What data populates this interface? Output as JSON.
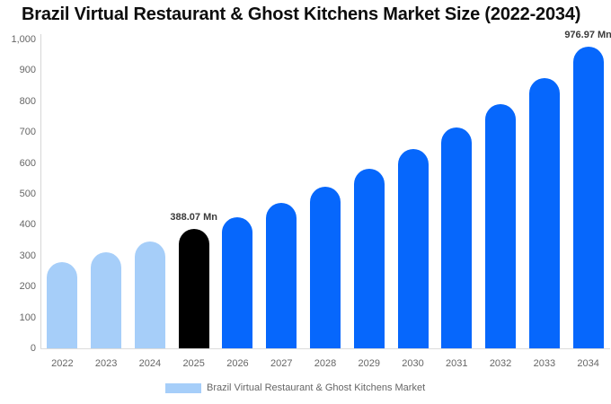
{
  "title": "Brazil Virtual Restaurant & Ghost Kitchens Market Size (2022-2034)",
  "chart_data": {
    "type": "bar",
    "title": "Brazil Virtual Restaurant & Ghost Kitchens Market Size (2022-2034)",
    "unit": "Mn",
    "categories": [
      "2022",
      "2023",
      "2024",
      "2025",
      "2026",
      "2027",
      "2028",
      "2029",
      "2030",
      "2031",
      "2032",
      "2033",
      "2034"
    ],
    "series": [
      {
        "name": "Brazil Virtual Restaurant & Ghost Kitchens Market",
        "values": [
          279,
          311,
          345,
          388.07,
          425,
          470,
          522,
          580,
          645,
          714,
          791,
          875,
          976.97
        ]
      }
    ],
    "bar_colors": [
      "#A6CEF9",
      "#A6CEF9",
      "#A6CEF9",
      "#000000",
      "#0667FC",
      "#0667FC",
      "#0667FC",
      "#0667FC",
      "#0667FC",
      "#0667FC",
      "#0667FC",
      "#0667FC",
      "#0667FC"
    ],
    "value_labels": [
      {
        "category": "2025",
        "index": 3,
        "text": "388.07 Mn"
      },
      {
        "category": "2034",
        "index": 12,
        "text": "976.97 Mn"
      }
    ],
    "xlabel": "",
    "ylabel": "",
    "ylim": [
      0,
      1000
    ],
    "yticks": [
      {
        "value": 0,
        "label": "0"
      },
      {
        "value": 100,
        "label": "100"
      },
      {
        "value": 200,
        "label": "200"
      },
      {
        "value": 300,
        "label": "300"
      },
      {
        "value": 400,
        "label": "400"
      },
      {
        "value": 500,
        "label": "500"
      },
      {
        "value": 600,
        "label": "600"
      },
      {
        "value": 700,
        "label": "700"
      },
      {
        "value": 800,
        "label": "800"
      },
      {
        "value": 900,
        "label": "900"
      },
      {
        "value": 1000,
        "label": "1,000"
      }
    ],
    "grid": false,
    "legend": {
      "position": "bottom",
      "label": "Brazil Virtual Restaurant & Ghost Kitchens Market",
      "swatch_color": "#A6CEF9"
    }
  },
  "colors": {
    "background": "#ffffff",
    "historical_bar": "#A6CEF9",
    "highlight_bar": "#000000",
    "forecast_bar": "#0667FC",
    "axis_line": "#d6d6d6",
    "tick_text": "#666666",
    "annotation_text": "#3a3a3a",
    "title_text": "#0d0d0d"
  }
}
